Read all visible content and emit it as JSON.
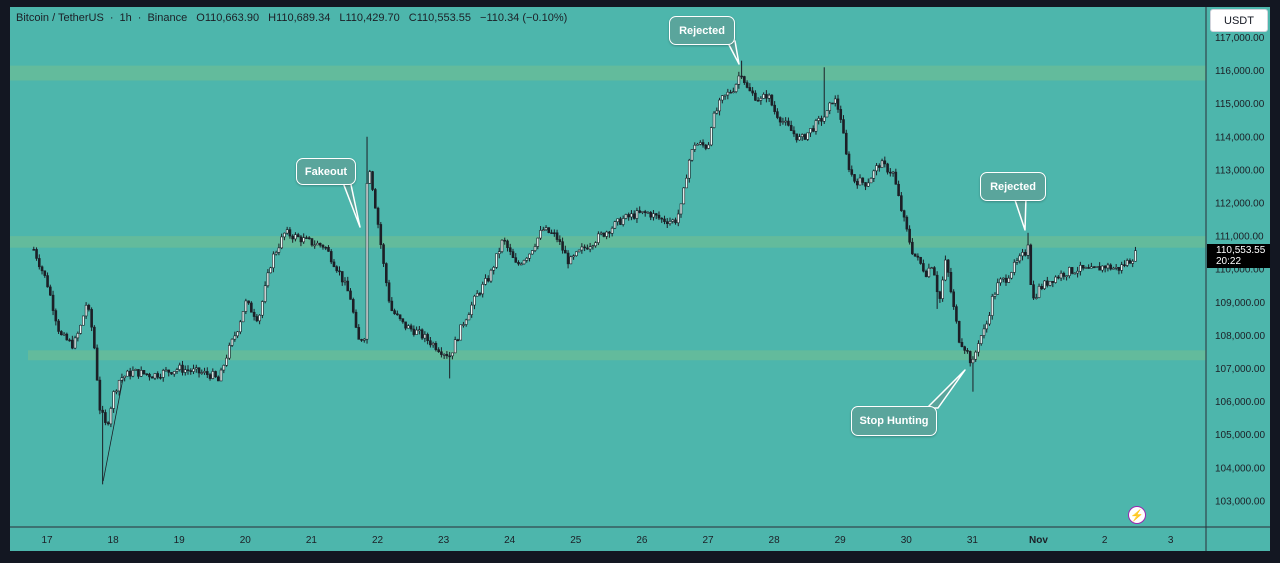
{
  "header": {
    "symbol": "Bitcoin / TetherUS",
    "interval": "1h",
    "exchange": "Binance",
    "open": "O110,663.90",
    "high": "H110,689.34",
    "low": "L110,429.70",
    "close": "C110,553.55",
    "change": "−110.34 (−0.10%)"
  },
  "currency_button": "USDT",
  "last_price": {
    "value": "110,553.55",
    "countdown": "20:22"
  },
  "callouts": {
    "fakeout": "Fakeout",
    "rejected_top": "Rejected",
    "rejected_right": "Rejected",
    "stop_hunting": "Stop Hunting"
  },
  "icons": {
    "alert": "lightning-icon"
  },
  "colors": {
    "background": "#4db6ac",
    "zone": "#66bb9a",
    "candle": "#1c1f26",
    "callout_fill": "#5aa59c",
    "price_tag": "#000000"
  },
  "chart_data": {
    "type": "candlestick",
    "symbol": "BTCUSDT",
    "ylim": [
      102400,
      117500
    ],
    "y_ticks": [
      103000,
      104000,
      105000,
      106000,
      107000,
      108000,
      109000,
      110000,
      111000,
      112000,
      113000,
      114000,
      115000,
      116000,
      117000
    ],
    "y_tick_labels": [
      "103,000.00",
      "104,000.00",
      "105,000.00",
      "106,000.00",
      "107,000.00",
      "108,000.00",
      "109,000.00",
      "110,000.00",
      "111,000.00",
      "112,000.00",
      "113,000.00",
      "114,000.00",
      "115,000.00",
      "116,000.00",
      "117,000.00"
    ],
    "x_tick_labels": [
      "17",
      "18",
      "19",
      "20",
      "21",
      "22",
      "23",
      "24",
      "25",
      "26",
      "27",
      "28",
      "29",
      "30",
      "31",
      "Nov",
      "2",
      "3"
    ],
    "zones": [
      {
        "from": 115700,
        "to": 116150
      },
      {
        "from": 110650,
        "to": 111000
      },
      {
        "from": 107250,
        "to": 107550
      }
    ],
    "path_points": [
      [
        16.8,
        110600
      ],
      [
        17.0,
        109600
      ],
      [
        17.2,
        108000
      ],
      [
        17.4,
        107700
      ],
      [
        17.5,
        108200
      ],
      [
        17.6,
        109000
      ],
      [
        17.7,
        108000
      ],
      [
        17.8,
        105800
      ],
      [
        17.9,
        105200
      ],
      [
        18.0,
        106200
      ],
      [
        18.1,
        106700
      ],
      [
        18.3,
        106900
      ],
      [
        18.6,
        106800
      ],
      [
        19.0,
        107000
      ],
      [
        19.5,
        106800
      ],
      [
        19.6,
        106600
      ],
      [
        19.7,
        107300
      ],
      [
        19.9,
        108300
      ],
      [
        20.0,
        109000
      ],
      [
        20.2,
        108500
      ],
      [
        20.4,
        110300
      ],
      [
        20.6,
        111100
      ],
      [
        21.0,
        110800
      ],
      [
        21.2,
        110700
      ],
      [
        21.4,
        110000
      ],
      [
        21.6,
        109100
      ],
      [
        21.7,
        107800
      ],
      [
        21.8,
        108000
      ],
      [
        21.85,
        113500
      ],
      [
        22.0,
        111500
      ],
      [
        22.1,
        110000
      ],
      [
        22.2,
        108800
      ],
      [
        22.4,
        108300
      ],
      [
        22.6,
        108100
      ],
      [
        22.8,
        107800
      ],
      [
        23.0,
        107500
      ],
      [
        23.1,
        107400
      ],
      [
        23.3,
        108400
      ],
      [
        23.5,
        109200
      ],
      [
        23.7,
        109800
      ],
      [
        23.9,
        110900
      ],
      [
        24.1,
        110100
      ],
      [
        24.3,
        110500
      ],
      [
        24.5,
        111200
      ],
      [
        24.7,
        111000
      ],
      [
        24.9,
        110200
      ],
      [
        25.1,
        110600
      ],
      [
        25.3,
        110900
      ],
      [
        25.5,
        111200
      ],
      [
        25.7,
        111500
      ],
      [
        25.9,
        111650
      ],
      [
        26.1,
        111700
      ],
      [
        26.3,
        111500
      ],
      [
        26.5,
        111450
      ],
      [
        26.6,
        111900
      ],
      [
        26.7,
        113200
      ],
      [
        26.8,
        113800
      ],
      [
        27.0,
        113700
      ],
      [
        27.05,
        114400
      ],
      [
        27.2,
        115100
      ],
      [
        27.4,
        115500
      ],
      [
        27.5,
        116000
      ],
      [
        27.6,
        115400
      ],
      [
        27.8,
        115100
      ],
      [
        27.9,
        115300
      ],
      [
        28.0,
        114800
      ],
      [
        28.2,
        114300
      ],
      [
        28.4,
        113900
      ],
      [
        28.6,
        114300
      ],
      [
        28.8,
        114700
      ],
      [
        28.9,
        115200
      ],
      [
        29.0,
        114700
      ],
      [
        29.1,
        113300
      ],
      [
        29.2,
        112700
      ],
      [
        29.4,
        112600
      ],
      [
        29.6,
        113200
      ],
      [
        29.8,
        112900
      ],
      [
        29.9,
        112000
      ],
      [
        30.0,
        111200
      ],
      [
        30.1,
        110500
      ],
      [
        30.3,
        109900
      ],
      [
        30.4,
        110200
      ],
      [
        30.5,
        109000
      ],
      [
        30.6,
        110300
      ],
      [
        30.7,
        109000
      ],
      [
        30.8,
        107900
      ],
      [
        30.9,
        107600
      ],
      [
        31.0,
        107100
      ],
      [
        31.1,
        107900
      ],
      [
        31.2,
        108200
      ],
      [
        31.3,
        109100
      ],
      [
        31.4,
        109600
      ],
      [
        31.5,
        109700
      ],
      [
        31.6,
        110000
      ],
      [
        31.8,
        110500
      ],
      [
        31.85,
        110900
      ],
      [
        31.9,
        109000
      ],
      [
        32.0,
        109400
      ],
      [
        32.2,
        109700
      ],
      [
        32.4,
        109900
      ],
      [
        32.6,
        110000
      ],
      [
        32.8,
        109950
      ],
      [
        33.0,
        110100
      ],
      [
        33.2,
        110000
      ],
      [
        33.4,
        110300
      ],
      [
        33.5,
        110550
      ]
    ]
  }
}
